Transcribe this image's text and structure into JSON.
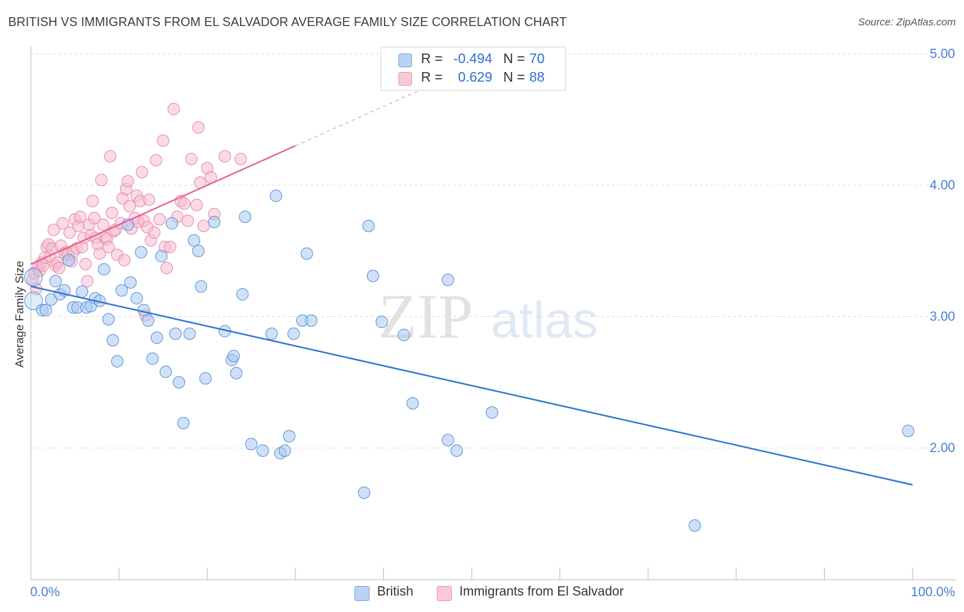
{
  "title": "BRITISH VS IMMIGRANTS FROM EL SALVADOR AVERAGE FAMILY SIZE CORRELATION CHART",
  "source": "Source: ZipAtlas.com",
  "watermark": {
    "zip": "ZIP",
    "atlas": "atlas"
  },
  "colors": {
    "british_fill": "#a9c8f0",
    "british_stroke": "#5b93d8",
    "british_line": "#2f74d0",
    "salvador_fill": "#f6bdd0",
    "salvador_stroke": "#e98aaa",
    "salvador_line": "#e4648e",
    "axis_text": "#4a7fd0",
    "grid": "#dddddd"
  },
  "legend": {
    "british": {
      "r_label": "R =",
      "r_value": "-0.494",
      "n_label": "N =",
      "n_value": "70"
    },
    "salvador": {
      "r_label": "R =",
      "r_value": "0.629",
      "n_label": "N =",
      "n_value": "88"
    }
  },
  "chart_data": {
    "type": "scatter",
    "title": "BRITISH VS IMMIGRANTS FROM EL SALVADOR AVERAGE FAMILY SIZE CORRELATION CHART",
    "xlabel": "",
    "ylabel": "Average Family Size",
    "xlim": [
      0,
      100
    ],
    "ylim": [
      1.0,
      5.1
    ],
    "x_tick_labels": [
      "0.0%",
      "100.0%"
    ],
    "y_ticks": [
      2.0,
      3.0,
      4.0,
      5.0
    ],
    "y_tick_labels": [
      "2.00",
      "3.00",
      "4.00",
      "5.00"
    ],
    "grid": "horizontal dashed",
    "legend_position": "top-center",
    "series": [
      {
        "name": "British",
        "r": -0.494,
        "n": 70,
        "trend": {
          "x": [
            0,
            100
          ],
          "y": [
            3.23,
            1.72
          ]
        },
        "points": [
          [
            0.3,
            3.12
          ],
          [
            1.3,
            3.05
          ],
          [
            1.7,
            3.05
          ],
          [
            2.3,
            3.13
          ],
          [
            2.8,
            3.27
          ],
          [
            3.3,
            3.17
          ],
          [
            3.8,
            3.2
          ],
          [
            4.3,
            3.43
          ],
          [
            4.8,
            3.07
          ],
          [
            5.3,
            3.07
          ],
          [
            5.8,
            3.19
          ],
          [
            6.3,
            3.07
          ],
          [
            6.8,
            3.08
          ],
          [
            7.3,
            3.14
          ],
          [
            7.8,
            3.12
          ],
          [
            8.3,
            3.36
          ],
          [
            8.8,
            2.98
          ],
          [
            9.3,
            2.82
          ],
          [
            9.8,
            2.66
          ],
          [
            10.3,
            3.2
          ],
          [
            11.0,
            3.7
          ],
          [
            11.3,
            3.26
          ],
          [
            12.0,
            3.14
          ],
          [
            12.5,
            3.49
          ],
          [
            12.8,
            3.05
          ],
          [
            13.3,
            2.97
          ],
          [
            13.8,
            2.68
          ],
          [
            14.3,
            2.84
          ],
          [
            14.8,
            3.46
          ],
          [
            15.3,
            2.58
          ],
          [
            16.0,
            3.71
          ],
          [
            16.4,
            2.87
          ],
          [
            16.8,
            2.5
          ],
          [
            17.3,
            2.19
          ],
          [
            18.0,
            2.87
          ],
          [
            18.5,
            3.58
          ],
          [
            19.0,
            3.5
          ],
          [
            19.3,
            3.23
          ],
          [
            19.8,
            2.53
          ],
          [
            20.8,
            3.72
          ],
          [
            22.0,
            2.89
          ],
          [
            22.8,
            2.67
          ],
          [
            23.0,
            2.7
          ],
          [
            23.3,
            2.57
          ],
          [
            24.0,
            3.17
          ],
          [
            24.3,
            3.76
          ],
          [
            25.0,
            2.03
          ],
          [
            26.3,
            1.98
          ],
          [
            27.3,
            2.87
          ],
          [
            27.8,
            3.92
          ],
          [
            28.3,
            1.96
          ],
          [
            28.8,
            1.98
          ],
          [
            29.3,
            2.09
          ],
          [
            29.8,
            2.87
          ],
          [
            30.8,
            2.97
          ],
          [
            31.3,
            3.48
          ],
          [
            31.8,
            2.97
          ],
          [
            37.8,
            1.66
          ],
          [
            38.3,
            3.69
          ],
          [
            38.8,
            3.31
          ],
          [
            39.8,
            2.96
          ],
          [
            42.3,
            2.86
          ],
          [
            43.3,
            2.34
          ],
          [
            47.3,
            2.06
          ],
          [
            48.3,
            1.98
          ],
          [
            47.3,
            3.28
          ],
          [
            52.3,
            2.27
          ],
          [
            75.3,
            1.41
          ],
          [
            99.5,
            2.13
          ],
          [
            0.3,
            3.3
          ]
        ]
      },
      {
        "name": "Immigrants from El Salvador",
        "r": 0.629,
        "n": 88,
        "trend": {
          "x": [
            0,
            30
          ],
          "y": [
            3.4,
            4.3
          ]
        },
        "trend_extension": {
          "x": [
            30,
            46
          ],
          "y": [
            4.3,
            4.78
          ]
        },
        "points": [
          [
            0.2,
            3.28
          ],
          [
            0.4,
            3.33
          ],
          [
            0.6,
            3.21
          ],
          [
            0.8,
            3.37
          ],
          [
            1.0,
            3.35
          ],
          [
            1.2,
            3.41
          ],
          [
            1.4,
            3.39
          ],
          [
            1.6,
            3.45
          ],
          [
            1.8,
            3.53
          ],
          [
            2.0,
            3.55
          ],
          [
            2.2,
            3.46
          ],
          [
            2.4,
            3.52
          ],
          [
            2.6,
            3.66
          ],
          [
            2.8,
            3.39
          ],
          [
            3.0,
            3.41
          ],
          [
            3.2,
            3.37
          ],
          [
            3.4,
            3.54
          ],
          [
            3.6,
            3.71
          ],
          [
            3.8,
            3.48
          ],
          [
            4.0,
            3.49
          ],
          [
            4.2,
            3.47
          ],
          [
            4.4,
            3.64
          ],
          [
            4.6,
            3.42
          ],
          [
            4.8,
            3.49
          ],
          [
            5.0,
            3.74
          ],
          [
            5.2,
            3.52
          ],
          [
            5.4,
            3.69
          ],
          [
            5.6,
            3.76
          ],
          [
            5.8,
            3.53
          ],
          [
            6.0,
            3.6
          ],
          [
            6.2,
            3.4
          ],
          [
            6.4,
            3.27
          ],
          [
            6.6,
            3.7
          ],
          [
            6.8,
            3.62
          ],
          [
            7.0,
            3.88
          ],
          [
            7.2,
            3.75
          ],
          [
            7.4,
            3.6
          ],
          [
            7.6,
            3.55
          ],
          [
            7.8,
            3.48
          ],
          [
            8.0,
            4.04
          ],
          [
            8.2,
            3.7
          ],
          [
            8.4,
            3.6
          ],
          [
            8.6,
            3.59
          ],
          [
            8.8,
            3.53
          ],
          [
            9.0,
            4.22
          ],
          [
            9.2,
            3.79
          ],
          [
            9.4,
            3.65
          ],
          [
            9.6,
            3.66
          ],
          [
            9.8,
            3.47
          ],
          [
            10.2,
            3.71
          ],
          [
            10.4,
            3.9
          ],
          [
            10.6,
            3.43
          ],
          [
            10.8,
            3.97
          ],
          [
            11.0,
            4.03
          ],
          [
            11.2,
            3.84
          ],
          [
            11.4,
            3.67
          ],
          [
            11.8,
            3.75
          ],
          [
            12.0,
            3.92
          ],
          [
            12.2,
            3.72
          ],
          [
            12.4,
            3.88
          ],
          [
            12.6,
            4.1
          ],
          [
            12.8,
            3.73
          ],
          [
            13.0,
            3.01
          ],
          [
            13.2,
            3.68
          ],
          [
            13.4,
            3.89
          ],
          [
            13.6,
            3.58
          ],
          [
            14.0,
            3.64
          ],
          [
            14.2,
            4.19
          ],
          [
            14.6,
            3.74
          ],
          [
            15.0,
            4.34
          ],
          [
            15.2,
            3.53
          ],
          [
            15.4,
            3.37
          ],
          [
            15.8,
            3.53
          ],
          [
            16.2,
            4.58
          ],
          [
            16.6,
            3.76
          ],
          [
            17.0,
            3.88
          ],
          [
            17.4,
            3.86
          ],
          [
            17.8,
            3.73
          ],
          [
            18.2,
            4.2
          ],
          [
            18.8,
            3.85
          ],
          [
            19.2,
            4.02
          ],
          [
            19.6,
            3.69
          ],
          [
            20.0,
            4.13
          ],
          [
            20.4,
            4.06
          ],
          [
            20.8,
            3.78
          ],
          [
            22.0,
            4.22
          ],
          [
            23.8,
            4.2
          ],
          [
            19.0,
            4.44
          ]
        ]
      }
    ]
  },
  "bottom_legend": {
    "british": "British",
    "salvador": "Immigrants from El Salvador"
  }
}
